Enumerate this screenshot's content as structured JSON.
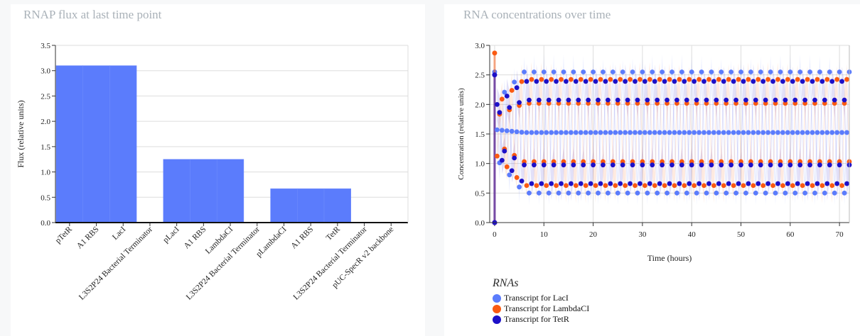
{
  "colors": {
    "lacI": "#5b7cfc",
    "lambdaCI": "#fa5a12",
    "tetR": "#1d10c8",
    "bar": "#5b7cfc",
    "grid": "#dddddd",
    "title": "#a9b1b8"
  },
  "left": {
    "title": "RNAP flux at last time point"
  },
  "right": {
    "title": "RNA concentrations over time",
    "legend_title": "RNAs"
  },
  "chart_data": [
    {
      "type": "bar",
      "title": "RNAP flux at last time point",
      "xlabel": "",
      "ylabel": "Flux (relative units)",
      "ylim": [
        0,
        3.5
      ],
      "yticks": [
        "0.0",
        "0.5",
        "1.0",
        "1.5",
        "2.0",
        "2.5",
        "3.0",
        "3.5"
      ],
      "grid": true,
      "categories": [
        "pTetR",
        "A1 RBS",
        "LacI",
        "L3S2P24 Bacterial Terminator",
        "pLacI",
        "A1 RBS",
        "LambdaCI",
        "L3S2P24 Bacterial Terminator",
        "pLambdaCI",
        "A1 RBS",
        "TetR",
        "L3S2P24 Bacterial Terminator",
        "pUC-SpecR v2 backbone"
      ],
      "values": [
        3.1,
        3.1,
        3.1,
        0,
        1.25,
        1.25,
        1.25,
        0,
        0.67,
        0.67,
        0.67,
        0,
        0
      ]
    },
    {
      "type": "scatter",
      "title": "RNA concentrations over time",
      "xlabel": "Time (hours)",
      "ylabel": "Concentration (relative units)",
      "xlim": [
        -1,
        72
      ],
      "ylim": [
        0,
        3.0
      ],
      "xticks": [
        "0",
        "10",
        "20",
        "30",
        "40",
        "50",
        "60",
        "70"
      ],
      "yticks": [
        "0.0",
        "0.5",
        "1.0",
        "1.5",
        "2.0",
        "2.5",
        "3.0"
      ],
      "grid": true,
      "legend_position": "bottom-left",
      "oscillation": {
        "period_hours": 2.0,
        "min": 0.5,
        "max": 2.55,
        "sample_step_hours": 0.5,
        "initial": [
          2.55,
          2.87,
          2.5
        ]
      },
      "series": [
        {
          "name": "Transcript for LacI",
          "color": "#5b7cfc",
          "phase": 0.0
        },
        {
          "name": "Transcript for LambdaCI",
          "color": "#fa5a12",
          "phase": 0.33
        },
        {
          "name": "Transcript for TetR",
          "color": "#1d10c8",
          "phase": 0.66
        }
      ]
    }
  ]
}
